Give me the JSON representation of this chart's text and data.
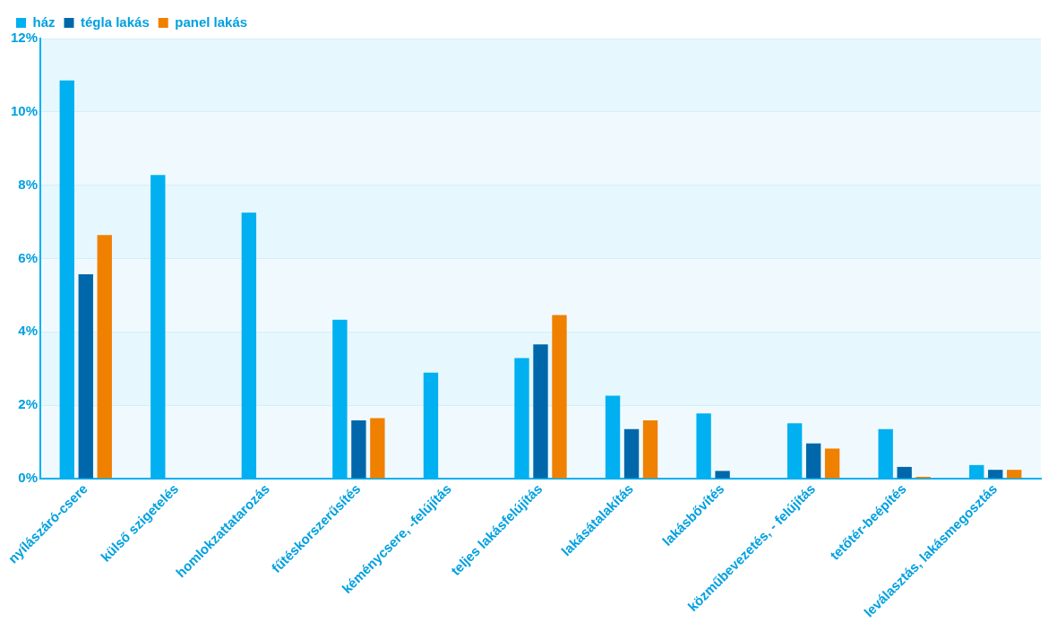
{
  "chart_data": {
    "type": "bar",
    "categories": [
      "nyílászáró-csere",
      "külső szigetelés",
      "homlokzattatarozás",
      "fűtéskorszerűsítés",
      "kéménycsere, -felújítás",
      "teljes lakásfelújítás",
      "lakásátalakítás",
      "lakásbővítés",
      "közműbevezetés, - felújítás",
      "tetőtér-beépítés",
      "leválasztás, lakásmegosztás"
    ],
    "series": [
      {
        "name": "ház",
        "color": "#00b0f0",
        "values": [
          10.86,
          8.28,
          7.25,
          4.33,
          2.89,
          3.29,
          2.26,
          1.78,
          1.51,
          1.35,
          0.37
        ]
      },
      {
        "name": "tégla lakás",
        "color": "#0068aa",
        "values": [
          5.57,
          null,
          null,
          1.59,
          null,
          3.66,
          1.35,
          0.21,
          0.96,
          0.32,
          0.24
        ]
      },
      {
        "name": "panel lakás",
        "color": "#f08000",
        "values": [
          6.64,
          null,
          null,
          1.65,
          null,
          4.46,
          1.59,
          null,
          0.82,
          0.05,
          0.24
        ]
      }
    ],
    "ylim": [
      0,
      12
    ],
    "yticks": [
      {
        "value": 0,
        "label": "0%"
      },
      {
        "value": 2,
        "label": "2%"
      },
      {
        "value": 4,
        "label": "4%"
      },
      {
        "value": 6,
        "label": "6%"
      },
      {
        "value": 8,
        "label": "8%"
      },
      {
        "value": 10,
        "label": "10%"
      },
      {
        "value": 12,
        "label": "12%"
      }
    ],
    "grid": "y",
    "legend": "top left"
  }
}
